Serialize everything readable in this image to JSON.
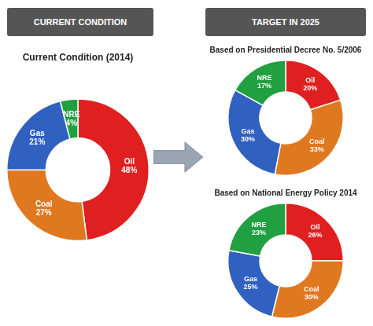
{
  "chart_data": [
    {
      "type": "doughnut",
      "title": "Current Condition (2014)",
      "annotations": [
        "CURRENT CONDITION"
      ],
      "categories": [
        "Oil",
        "Coal",
        "Gas",
        "NRE"
      ],
      "values": [
        48,
        27,
        21,
        4
      ],
      "value_labels": [
        "48%",
        "27%",
        "21%",
        "4%"
      ],
      "colors": [
        "#e02020",
        "#e07820",
        "#3060c0",
        "#20a040"
      ],
      "data_labels": true
    },
    {
      "type": "doughnut",
      "title": "Based on Presidential Decree No. 5/2006",
      "annotations": [
        "TARGET IN 2025"
      ],
      "categories": [
        "Oil",
        "Coal",
        "Gas",
        "NRE"
      ],
      "values": [
        20,
        33,
        30,
        17
      ],
      "value_labels": [
        "20%",
        "33%",
        "30%",
        "17%"
      ],
      "colors": [
        "#e02020",
        "#e07820",
        "#3060c0",
        "#20a040"
      ],
      "data_labels": true
    },
    {
      "type": "doughnut",
      "title": "Based on National Energy Policy 2014",
      "categories": [
        "Oil",
        "Coal",
        "Gas",
        "NRE"
      ],
      "values": [
        26,
        30,
        25,
        23
      ],
      "value_labels": [
        "26%",
        "30%",
        "25%",
        "23%"
      ],
      "colors": [
        "#e02020",
        "#e07820",
        "#3060c0",
        "#20a040"
      ],
      "data_labels": true
    }
  ]
}
